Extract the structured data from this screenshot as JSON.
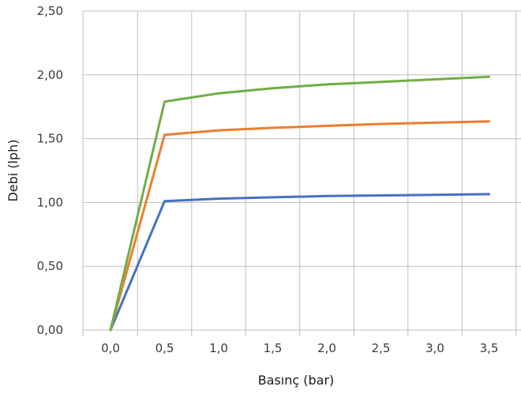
{
  "chart_data": {
    "type": "line",
    "title": "",
    "xlabel": "Basınç (bar)",
    "ylabel": "Debi (lph)",
    "x": [
      0.0,
      0.5,
      1.0,
      1.5,
      2.0,
      2.5,
      3.0,
      3.5
    ],
    "x_tick_labels": [
      "0,0",
      "0,5",
      "1,0",
      "1,5",
      "2,0",
      "2,5",
      "3,0",
      "3,5"
    ],
    "y_tick_labels": [
      "0,00",
      "0,50",
      "1,00",
      "1,50",
      "2,00",
      "2,50"
    ],
    "ylim": [
      0,
      2.5
    ],
    "grid": true,
    "legend": "none",
    "series": [
      {
        "color": "#4472c4",
        "values": [
          0.0,
          1.01,
          1.03,
          1.04,
          1.05,
          1.055,
          1.06,
          1.065
        ]
      },
      {
        "color": "#ed7d31",
        "values": [
          0.0,
          1.53,
          1.565,
          1.585,
          1.6,
          1.615,
          1.625,
          1.635
        ]
      },
      {
        "color": "#70ad47",
        "values": [
          0.0,
          1.79,
          1.855,
          1.895,
          1.925,
          1.945,
          1.965,
          1.985
        ]
      }
    ]
  }
}
